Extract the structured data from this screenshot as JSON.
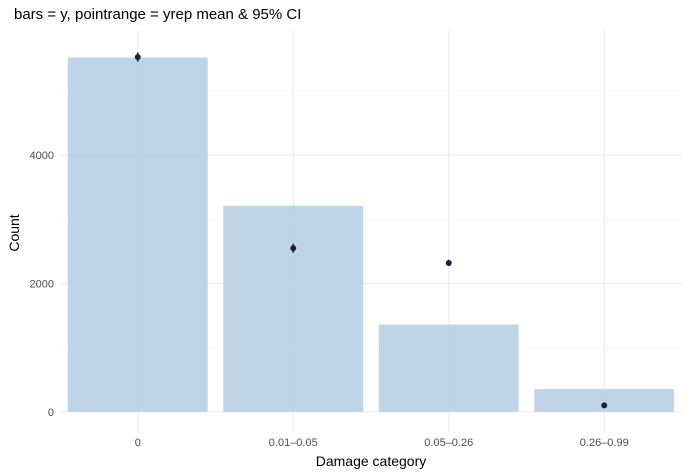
{
  "chart_data": {
    "type": "bar",
    "title": "bars = y, pointrange = yrep mean & 95% CI",
    "xlabel": "Damage category",
    "ylabel": "Count",
    "categories": [
      "0",
      "0.01–0.05",
      "0.05–0.26",
      "0.26–0.99"
    ],
    "series": [
      {
        "name": "y",
        "values": [
          5520,
          3210,
          1360,
          355
        ]
      },
      {
        "name": "yrep mean",
        "values": [
          5530,
          2550,
          2320,
          100
        ]
      }
    ],
    "ci95_lower": [
      5460,
      2480,
      2270,
      80
    ],
    "ci95_upper": [
      5600,
      2620,
      2370,
      120
    ],
    "ylim": [
      -330,
      5950
    ],
    "y_ticks": [
      0,
      2000,
      4000
    ],
    "grid": true,
    "legend": "none",
    "bar_color": "#b4cde3",
    "point_color": "#1c2333"
  }
}
